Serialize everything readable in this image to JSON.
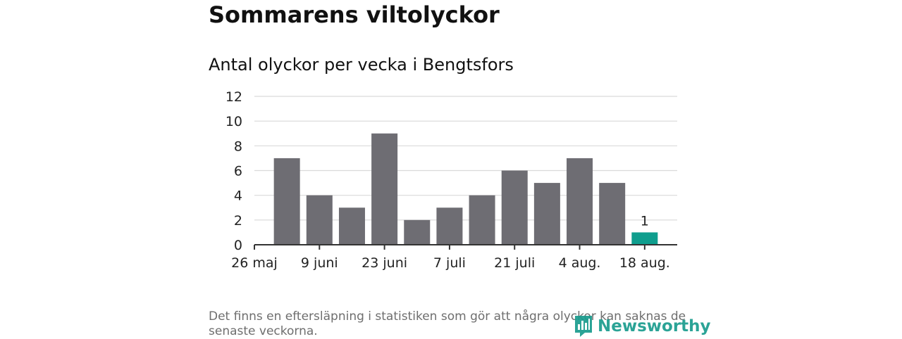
{
  "header": {
    "title": "Sommarens viltolyckor",
    "subtitle": "Antal olyckor per vecka i Bengtsfors"
  },
  "chart_data": {
    "type": "bar",
    "title": "Sommarens viltolyckor",
    "subtitle": "Antal olyckor per vecka i Bengtsfors",
    "xlabel": "",
    "ylabel": "",
    "values": [
      7,
      4,
      3,
      9,
      2,
      3,
      4,
      6,
      5,
      7,
      5,
      1
    ],
    "x_tick_labels": [
      "26 maj",
      "9 juni",
      "23 juni",
      "7 juli",
      "21 juli",
      "4 aug.",
      "18 aug."
    ],
    "y_ticks": [
      0,
      2,
      4,
      6,
      8,
      10,
      12
    ],
    "ylim": [
      0,
      12
    ],
    "grid": true,
    "highlight_index": 11,
    "highlight_label": "1",
    "colors": {
      "bar": "#6e6d73",
      "highlight": "#0f9e8e",
      "grid": "#d9d9d9",
      "axis": "#333333"
    }
  },
  "footer": {
    "note": "Det finns en eftersläpning i statistiken som gör att några olyckor kan saknas de senaste veckorna.",
    "brand": "Newsworthy",
    "brand_color": "#1a9c8e"
  }
}
